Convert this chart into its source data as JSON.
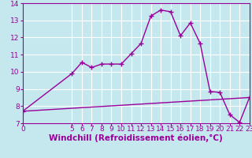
{
  "title": "",
  "xlabel": "Windchill (Refroidissement éolien,°C)",
  "ylabel": "",
  "background_color": "#c5e8ef",
  "line_color": "#990099",
  "grid_color": "#b8dce6",
  "xlim": [
    0,
    23
  ],
  "ylim": [
    7,
    14
  ],
  "yticks": [
    7,
    8,
    9,
    10,
    11,
    12,
    13,
    14
  ],
  "xticks": [
    0,
    5,
    6,
    7,
    8,
    9,
    10,
    11,
    12,
    13,
    14,
    15,
    16,
    17,
    18,
    19,
    20,
    21,
    22,
    23
  ],
  "data_x": [
    0,
    5,
    6,
    7,
    8,
    9,
    10,
    11,
    12,
    13,
    14,
    15,
    16,
    17,
    18,
    19,
    20,
    21,
    22,
    23
  ],
  "data_y": [
    7.7,
    9.9,
    10.55,
    10.25,
    10.45,
    10.45,
    10.45,
    11.05,
    11.65,
    13.25,
    13.6,
    13.5,
    12.1,
    12.85,
    11.65,
    8.85,
    8.8,
    7.5,
    7.05,
    8.5
  ],
  "trend_x": [
    0,
    23
  ],
  "trend_y": [
    7.7,
    8.5
  ],
  "marker": "P",
  "markersize": 3,
  "linewidth": 1.0,
  "tick_fontsize": 6.5,
  "label_fontsize": 7.5
}
